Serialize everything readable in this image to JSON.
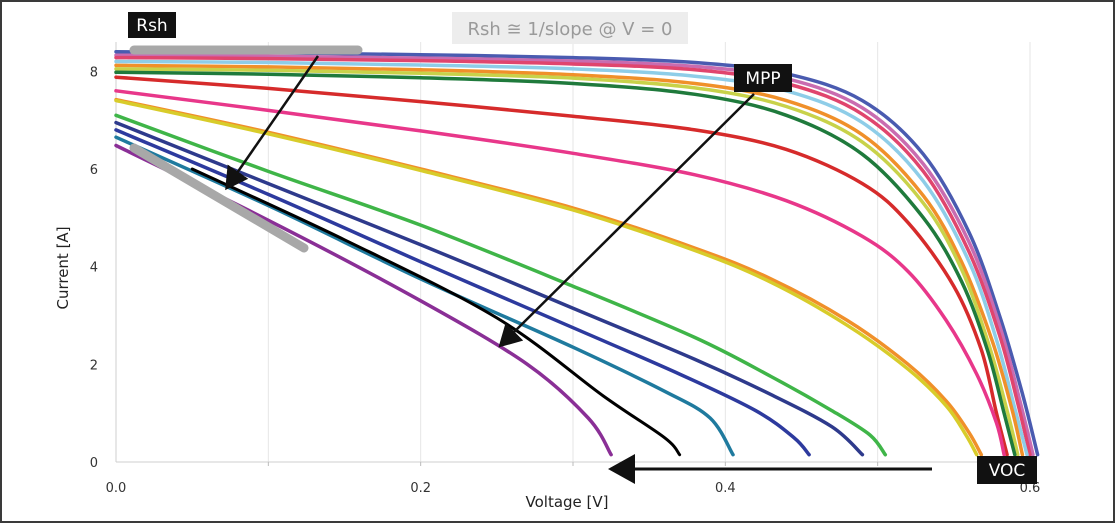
{
  "chart_data": {
    "type": "line",
    "xlabel": "Voltage [V]",
    "ylabel": "Current [A]",
    "xlim": [
      0,
      0.6
    ],
    "ylim": [
      0,
      8.6
    ],
    "x_ticks": [
      "0.0",
      "0.2",
      "0.4",
      "0.6"
    ],
    "y_ticks": [
      "0",
      "2",
      "4",
      "6",
      "8"
    ],
    "grid": "vertical",
    "series": [
      {
        "color": "#4a5bb0",
        "points": [
          [
            0,
            8.4
          ],
          [
            0.1,
            8.38
          ],
          [
            0.2,
            8.34
          ],
          [
            0.3,
            8.28
          ],
          [
            0.38,
            8.18
          ],
          [
            0.44,
            7.95
          ],
          [
            0.49,
            7.4
          ],
          [
            0.53,
            6.3
          ],
          [
            0.56,
            4.7
          ],
          [
            0.58,
            3.0
          ],
          [
            0.595,
            1.4
          ],
          [
            0.605,
            0.15
          ]
        ]
      },
      {
        "color": "#c96cb0",
        "points": [
          [
            0,
            8.33
          ],
          [
            0.1,
            8.31
          ],
          [
            0.2,
            8.27
          ],
          [
            0.3,
            8.21
          ],
          [
            0.38,
            8.1
          ],
          [
            0.44,
            7.85
          ],
          [
            0.49,
            7.25
          ],
          [
            0.53,
            6.1
          ],
          [
            0.56,
            4.5
          ],
          [
            0.58,
            2.8
          ],
          [
            0.593,
            1.3
          ],
          [
            0.602,
            0.15
          ]
        ]
      },
      {
        "color": "#e0456e",
        "points": [
          [
            0,
            8.28
          ],
          [
            0.1,
            8.26
          ],
          [
            0.2,
            8.22
          ],
          [
            0.3,
            8.15
          ],
          [
            0.38,
            8.03
          ],
          [
            0.44,
            7.75
          ],
          [
            0.49,
            7.12
          ],
          [
            0.53,
            5.95
          ],
          [
            0.56,
            4.3
          ],
          [
            0.58,
            2.6
          ],
          [
            0.592,
            1.2
          ],
          [
            0.6,
            0.15
          ]
        ]
      },
      {
        "color": "#8ecde8",
        "points": [
          [
            0,
            8.2
          ],
          [
            0.1,
            8.18
          ],
          [
            0.2,
            8.13
          ],
          [
            0.3,
            8.05
          ],
          [
            0.38,
            7.9
          ],
          [
            0.44,
            7.6
          ],
          [
            0.49,
            6.95
          ],
          [
            0.53,
            5.75
          ],
          [
            0.56,
            4.1
          ],
          [
            0.578,
            2.5
          ],
          [
            0.59,
            1.1
          ],
          [
            0.598,
            0.15
          ]
        ]
      },
      {
        "color": "#f0902a",
        "points": [
          [
            0,
            8.12
          ],
          [
            0.1,
            8.09
          ],
          [
            0.2,
            8.03
          ],
          [
            0.3,
            7.93
          ],
          [
            0.38,
            7.75
          ],
          [
            0.44,
            7.4
          ],
          [
            0.49,
            6.7
          ],
          [
            0.53,
            5.45
          ],
          [
            0.555,
            4.1
          ],
          [
            0.575,
            2.5
          ],
          [
            0.588,
            1.1
          ],
          [
            0.595,
            0.15
          ]
        ]
      },
      {
        "color": "#c8d24a",
        "points": [
          [
            0,
            8.05
          ],
          [
            0.1,
            8.02
          ],
          [
            0.2,
            7.96
          ],
          [
            0.3,
            7.86
          ],
          [
            0.38,
            7.66
          ],
          [
            0.44,
            7.28
          ],
          [
            0.49,
            6.55
          ],
          [
            0.53,
            5.3
          ],
          [
            0.555,
            3.95
          ],
          [
            0.573,
            2.4
          ],
          [
            0.585,
            1.05
          ],
          [
            0.592,
            0.15
          ]
        ]
      },
      {
        "color": "#1f7a3c",
        "points": [
          [
            0,
            7.98
          ],
          [
            0.1,
            7.94
          ],
          [
            0.2,
            7.87
          ],
          [
            0.3,
            7.75
          ],
          [
            0.38,
            7.53
          ],
          [
            0.44,
            7.1
          ],
          [
            0.49,
            6.3
          ],
          [
            0.53,
            5.0
          ],
          [
            0.555,
            3.7
          ],
          [
            0.572,
            2.3
          ],
          [
            0.583,
            1.0
          ],
          [
            0.59,
            0.15
          ]
        ]
      },
      {
        "color": "#d62b2b",
        "points": [
          [
            0,
            7.88
          ],
          [
            0.1,
            7.65
          ],
          [
            0.2,
            7.38
          ],
          [
            0.3,
            7.08
          ],
          [
            0.38,
            6.8
          ],
          [
            0.44,
            6.4
          ],
          [
            0.49,
            5.7
          ],
          [
            0.52,
            4.9
          ],
          [
            0.55,
            3.6
          ],
          [
            0.568,
            2.3
          ],
          [
            0.578,
            1.0
          ],
          [
            0.585,
            0.15
          ]
        ]
      },
      {
        "color": "#e8378a",
        "points": [
          [
            0,
            7.6
          ],
          [
            0.1,
            7.2
          ],
          [
            0.2,
            6.78
          ],
          [
            0.3,
            6.32
          ],
          [
            0.38,
            5.88
          ],
          [
            0.44,
            5.35
          ],
          [
            0.49,
            4.62
          ],
          [
            0.52,
            3.9
          ],
          [
            0.545,
            2.9
          ],
          [
            0.565,
            1.8
          ],
          [
            0.578,
            0.8
          ],
          [
            0.583,
            0.15
          ]
        ]
      },
      {
        "color": "#f0902a",
        "points": [
          [
            0,
            7.42
          ],
          [
            0.1,
            6.75
          ],
          [
            0.2,
            6.0
          ],
          [
            0.3,
            5.2
          ],
          [
            0.38,
            4.38
          ],
          [
            0.43,
            3.75
          ],
          [
            0.48,
            2.9
          ],
          [
            0.52,
            2.0
          ],
          [
            0.545,
            1.25
          ],
          [
            0.56,
            0.6
          ],
          [
            0.568,
            0.15
          ]
        ]
      },
      {
        "color": "#d8cc2a",
        "points": [
          [
            0,
            7.4
          ],
          [
            0.1,
            6.72
          ],
          [
            0.2,
            5.97
          ],
          [
            0.3,
            5.16
          ],
          [
            0.38,
            4.33
          ],
          [
            0.43,
            3.68
          ],
          [
            0.48,
            2.8
          ],
          [
            0.52,
            1.9
          ],
          [
            0.545,
            1.15
          ],
          [
            0.558,
            0.55
          ],
          [
            0.565,
            0.15
          ]
        ]
      },
      {
        "color": "#3fb548",
        "points": [
          [
            0,
            7.1
          ],
          [
            0.1,
            5.95
          ],
          [
            0.2,
            4.85
          ],
          [
            0.3,
            3.6
          ],
          [
            0.38,
            2.55
          ],
          [
            0.43,
            1.75
          ],
          [
            0.47,
            1.05
          ],
          [
            0.495,
            0.55
          ],
          [
            0.505,
            0.15
          ]
        ]
      },
      {
        "color": "#2e3a8c",
        "points": [
          [
            0,
            6.95
          ],
          [
            0.1,
            5.7
          ],
          [
            0.2,
            4.45
          ],
          [
            0.3,
            3.15
          ],
          [
            0.38,
            2.1
          ],
          [
            0.43,
            1.38
          ],
          [
            0.47,
            0.72
          ],
          [
            0.49,
            0.15
          ]
        ]
      },
      {
        "color": "#2d3a9e",
        "points": [
          [
            0,
            6.8
          ],
          [
            0.1,
            5.48
          ],
          [
            0.2,
            4.1
          ],
          [
            0.3,
            2.75
          ],
          [
            0.37,
            1.8
          ],
          [
            0.42,
            1.05
          ],
          [
            0.445,
            0.5
          ],
          [
            0.455,
            0.15
          ]
        ]
      },
      {
        "color": "#1f7a9e",
        "points": [
          [
            0,
            6.65
          ],
          [
            0.1,
            5.25
          ],
          [
            0.2,
            3.75
          ],
          [
            0.3,
            2.35
          ],
          [
            0.36,
            1.45
          ],
          [
            0.39,
            0.9
          ],
          [
            0.405,
            0.15
          ]
        ]
      },
      {
        "color": "#000000",
        "points": [
          [
            0.05,
            6.0
          ],
          [
            0.15,
            4.55
          ],
          [
            0.25,
            2.95
          ],
          [
            0.32,
            1.35
          ],
          [
            0.36,
            0.5
          ],
          [
            0.37,
            0.15
          ]
        ]
      },
      {
        "color": "#8a2f96",
        "points": [
          [
            0,
            6.48
          ],
          [
            0.1,
            4.95
          ],
          [
            0.2,
            3.3
          ],
          [
            0.27,
            2.0
          ],
          [
            0.31,
            0.9
          ],
          [
            0.325,
            0.15
          ]
        ]
      }
    ],
    "annotations": [
      {
        "text": "Rsh",
        "style": "label"
      },
      {
        "text": "Rsh ≅ 1/slope @ V = 0",
        "style": "note"
      },
      {
        "text": "MPP",
        "style": "label"
      },
      {
        "text": "VOC",
        "style": "label"
      }
    ]
  }
}
